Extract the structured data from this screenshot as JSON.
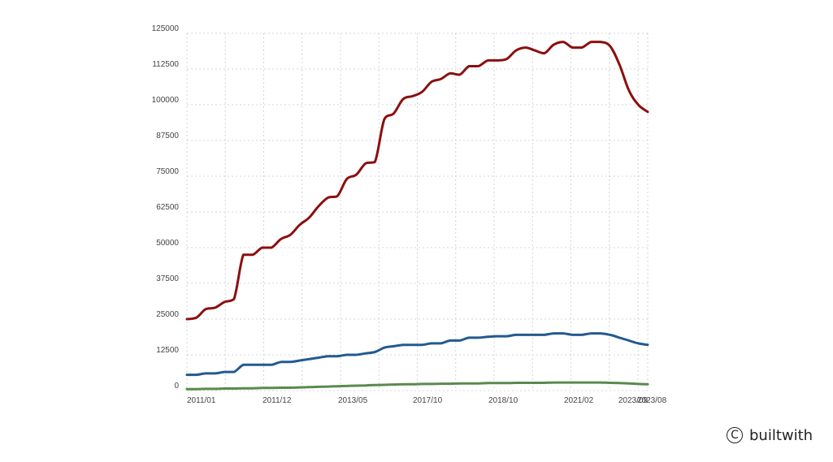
{
  "chart_data": {
    "type": "line",
    "title": "",
    "xlabel": "",
    "ylabel": "",
    "ylim": [
      0,
      125000
    ],
    "y_ticks": [
      0,
      12500,
      25000,
      37500,
      50000,
      62500,
      75000,
      87500,
      100000,
      112500,
      125000
    ],
    "x_tick_labels": [
      "2011/01",
      "2011/12",
      "2013/05",
      "2017/10",
      "2018/10",
      "2021/02",
      "2023/08",
      "2023/09"
    ],
    "grid": true,
    "legend": "none",
    "series": [
      {
        "color": "#8b0f0f",
        "values": [
          25000,
          25500,
          28500,
          29000,
          31000,
          32000,
          47500,
          47500,
          50000,
          50000,
          53000,
          54500,
          58000,
          60500,
          64500,
          67500,
          68000,
          74000,
          75500,
          79500,
          80000,
          95000,
          97000,
          102000,
          103000,
          104500,
          108000,
          109000,
          111000,
          110500,
          113500,
          113500,
          115500,
          115500,
          116000,
          119000,
          120000,
          119000,
          118000,
          121000,
          122000,
          120000,
          120000,
          122000,
          122000,
          120500,
          114000,
          105000,
          100000,
          97500
        ]
      },
      {
        "color": "#235a8f",
        "values": [
          5500,
          5500,
          6000,
          6000,
          6500,
          6500,
          9000,
          9000,
          9000,
          9000,
          10000,
          10000,
          10500,
          11000,
          11500,
          12000,
          12000,
          12500,
          12500,
          13000,
          13500,
          15000,
          15500,
          16000,
          16000,
          16000,
          16500,
          16500,
          17500,
          17500,
          18500,
          18500,
          18800,
          19000,
          19000,
          19500,
          19500,
          19500,
          19500,
          20000,
          20000,
          19500,
          19500,
          20000,
          20000,
          19500,
          18500,
          17500,
          16500,
          16000
        ]
      },
      {
        "color": "#5a8a4e",
        "values": [
          500,
          500,
          600,
          600,
          700,
          700,
          800,
          800,
          900,
          900,
          1000,
          1000,
          1100,
          1200,
          1300,
          1400,
          1500,
          1600,
          1700,
          1800,
          1900,
          2000,
          2100,
          2200,
          2200,
          2300,
          2300,
          2400,
          2400,
          2500,
          2500,
          2500,
          2600,
          2600,
          2600,
          2700,
          2700,
          2700,
          2700,
          2800,
          2800,
          2800,
          2800,
          2800,
          2800,
          2700,
          2600,
          2500,
          2300,
          2200
        ]
      }
    ]
  },
  "branding": {
    "icon": "copyright-icon",
    "glyph": "C",
    "text": "builtwith"
  }
}
